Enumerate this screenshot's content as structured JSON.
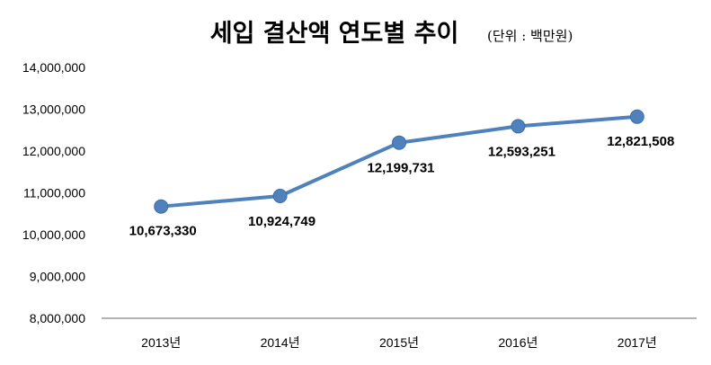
{
  "chart_data": {
    "type": "line",
    "title": "세입 결산액 연도별 추이",
    "unit_note": "(단위 : 백만원)",
    "xlabel": "",
    "ylabel": "",
    "categories": [
      "2013년",
      "2014년",
      "2015년",
      "2016년",
      "2017년"
    ],
    "series": [
      {
        "name": "세입 결산액",
        "values": [
          10673330,
          10924749,
          12199731,
          12593251,
          12821508
        ],
        "labels": [
          "10,673,330",
          "10,924,749",
          "12,199,731",
          "12,593,251",
          "12,821,508"
        ],
        "color": "#4F81BD"
      }
    ],
    "ylim": [
      8000000,
      14000000
    ],
    "yticks": [
      8000000,
      9000000,
      10000000,
      11000000,
      12000000,
      13000000,
      14000000
    ],
    "ytick_labels": [
      "8,000,000",
      "9,000,000",
      "10,000,000",
      "11,000,000",
      "12,000,000",
      "13,000,000",
      "14,000,000"
    ],
    "grid": false,
    "legend": "none"
  }
}
